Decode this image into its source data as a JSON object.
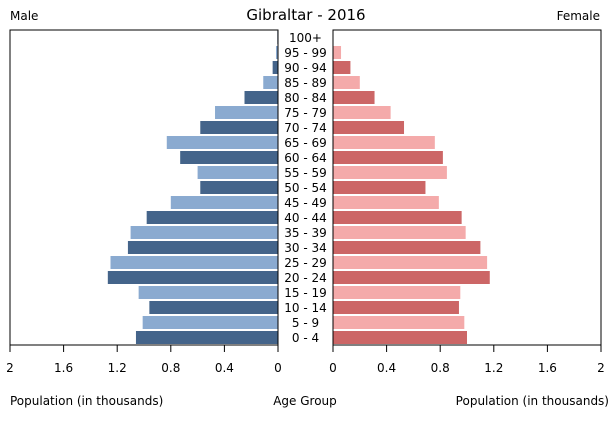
{
  "chart_data": {
    "type": "bar",
    "title": "Gibraltar - 2016",
    "left_label": "Male",
    "right_label": "Female",
    "xlabel_left": "Population (in thousands)",
    "xlabel_center": "Age Group",
    "xlabel_right": "Population (in thousands)",
    "xlim": [
      0,
      2
    ],
    "xticks": [
      "2",
      "1.6",
      "1.2",
      "0.8",
      "0.4",
      "0"
    ],
    "xticks_right": [
      "0",
      "0.4",
      "0.8",
      "1.2",
      "1.6",
      "2"
    ],
    "categories": [
      "0 - 4",
      "5 - 9",
      "10 - 14",
      "15 - 19",
      "20 - 24",
      "25 - 29",
      "30 - 34",
      "35 - 39",
      "40 - 44",
      "45 - 49",
      "50 - 54",
      "55 - 59",
      "60 - 64",
      "65 - 69",
      "70 - 74",
      "75 - 79",
      "80 - 84",
      "85 - 89",
      "90 - 94",
      "95 - 99",
      "100+"
    ],
    "series": [
      {
        "name": "Male",
        "values": [
          1.06,
          1.01,
          0.96,
          1.04,
          1.27,
          1.25,
          1.12,
          1.1,
          0.98,
          0.8,
          0.58,
          0.6,
          0.73,
          0.83,
          0.58,
          0.47,
          0.25,
          0.11,
          0.04,
          0.015,
          0.005
        ]
      },
      {
        "name": "Female",
        "values": [
          1.0,
          0.98,
          0.94,
          0.95,
          1.17,
          1.15,
          1.1,
          0.99,
          0.96,
          0.79,
          0.69,
          0.85,
          0.82,
          0.76,
          0.53,
          0.43,
          0.31,
          0.2,
          0.13,
          0.06,
          0.0
        ]
      }
    ],
    "colors": {
      "male_dark": "#44648a",
      "male_light": "#8aaad0",
      "female_dark": "#cc6666",
      "female_light": "#f4aaaa"
    }
  }
}
